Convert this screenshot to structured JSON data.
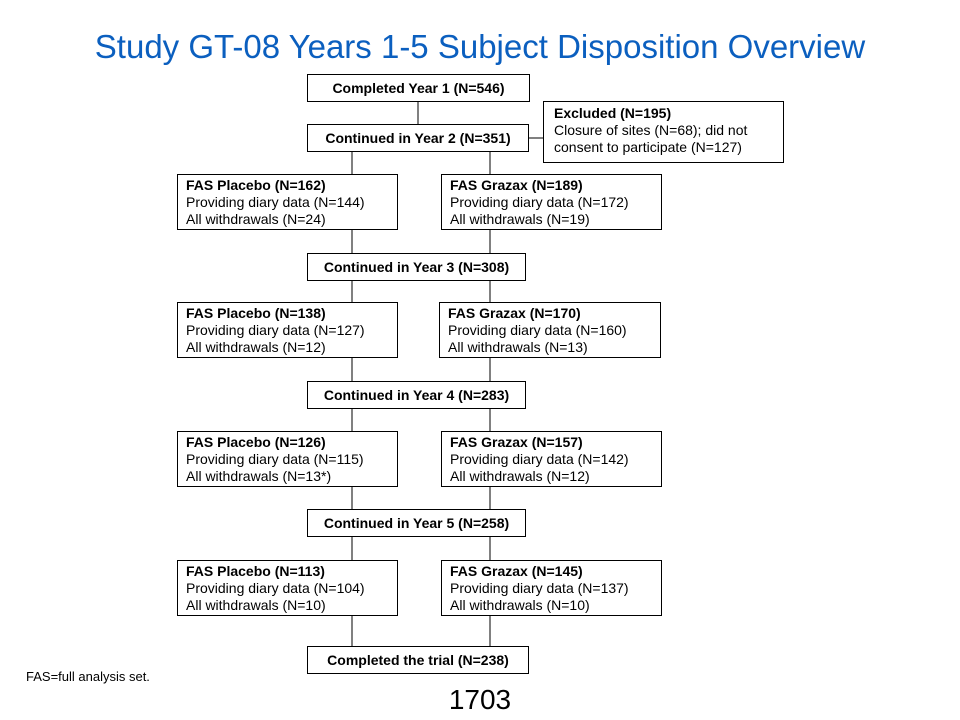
{
  "title": "Study GT-08 Years 1-5 Subject Disposition Overview",
  "boxes": {
    "completed_year1": "Completed Year 1 (N=546)",
    "continued_year2": "Continued in Year 2 (N=351)",
    "excluded": {
      "lines": [
        "Excluded (N=195)",
        "Closure of sites (N=68);  did not",
        "consent to participate (N=127)"
      ]
    },
    "y2_placebo": {
      "lines": [
        "FAS Placebo (N=162)",
        "Providing diary data (N=144)",
        "All withdrawals  (N=24)"
      ]
    },
    "y2_grazax": {
      "lines": [
        "FAS Grazax (N=189)",
        "Providing diary data (N=172)",
        "All withdrawals  (N=19)"
      ]
    },
    "continued_year3": "Continued in Year 3 (N=308)",
    "y3_placebo": {
      "lines": [
        "FAS Placebo (N=138)",
        "Providing diary data (N=127)",
        "All withdrawals  (N=12)"
      ]
    },
    "y3_grazax": {
      "lines": [
        "FAS Grazax (N=170)",
        "Providing diary data (N=160)",
        "All withdrawals  (N=13)"
      ]
    },
    "continued_year4": "Continued in Year 4 (N=283)",
    "y4_placebo": {
      "lines": [
        "FAS Placebo (N=126)",
        "Providing diary data (N=115)",
        "All withdrawals  (N=13*)"
      ]
    },
    "y4_grazax": {
      "lines": [
        "FAS Grazax (N=157)",
        "Providing diary data (N=142)",
        "All withdrawals  (N=12)"
      ]
    },
    "continued_year5": "Continued in Year 5 (N=258)",
    "y5_placebo": {
      "lines": [
        "FAS Placebo (N=113)",
        "Providing diary data (N=104)",
        "All withdrawals  (N=10)"
      ]
    },
    "y5_grazax": {
      "lines": [
        "FAS Grazax (N=145)",
        "Providing diary data (N=137)",
        "All withdrawals  (N=10)"
      ]
    },
    "completed_trial": "Completed the trial (N=238)"
  },
  "footnote": "FAS=full analysis set.",
  "page_number": "1703",
  "colors": {
    "title": "#0b5fbf",
    "border": "#000000"
  }
}
